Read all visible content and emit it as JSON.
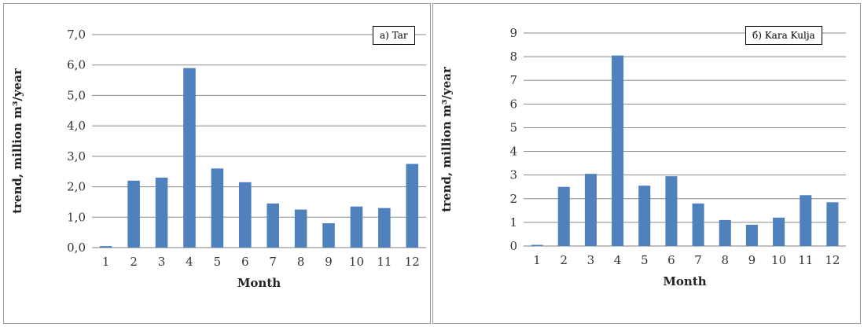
{
  "chart_data": [
    {
      "type": "bar",
      "annotation": "a) Tar",
      "categories": [
        "1",
        "2",
        "3",
        "4",
        "5",
        "6",
        "7",
        "8",
        "9",
        "10",
        "11",
        "12"
      ],
      "values": [
        0.05,
        2.2,
        2.3,
        5.9,
        2.6,
        2.15,
        1.45,
        1.25,
        0.8,
        1.35,
        1.3,
        2.75
      ],
      "xlabel": "Month",
      "ylabel": "trend, million m³/year",
      "ylim": [
        0,
        7
      ],
      "yticks": [
        "0,0",
        "1,0",
        "2,0",
        "3,0",
        "4,0",
        "5,0",
        "6,0",
        "7,0"
      ],
      "grid": true,
      "color": "#4f81bd"
    },
    {
      "type": "bar",
      "annotation": "б) Kara Kulja",
      "categories": [
        "1",
        "2",
        "3",
        "4",
        "5",
        "6",
        "7",
        "8",
        "9",
        "10",
        "11",
        "12"
      ],
      "values": [
        0.05,
        2.5,
        3.05,
        8.05,
        2.55,
        2.95,
        1.8,
        1.1,
        0.9,
        1.2,
        2.15,
        1.85
      ],
      "xlabel": "Month",
      "ylabel": "trend, million m³/year",
      "ylim": [
        0,
        9
      ],
      "yticks": [
        "0",
        "1",
        "2",
        "3",
        "4",
        "5",
        "6",
        "7",
        "8",
        "9"
      ],
      "grid": true,
      "color": "#4f81bd"
    }
  ]
}
